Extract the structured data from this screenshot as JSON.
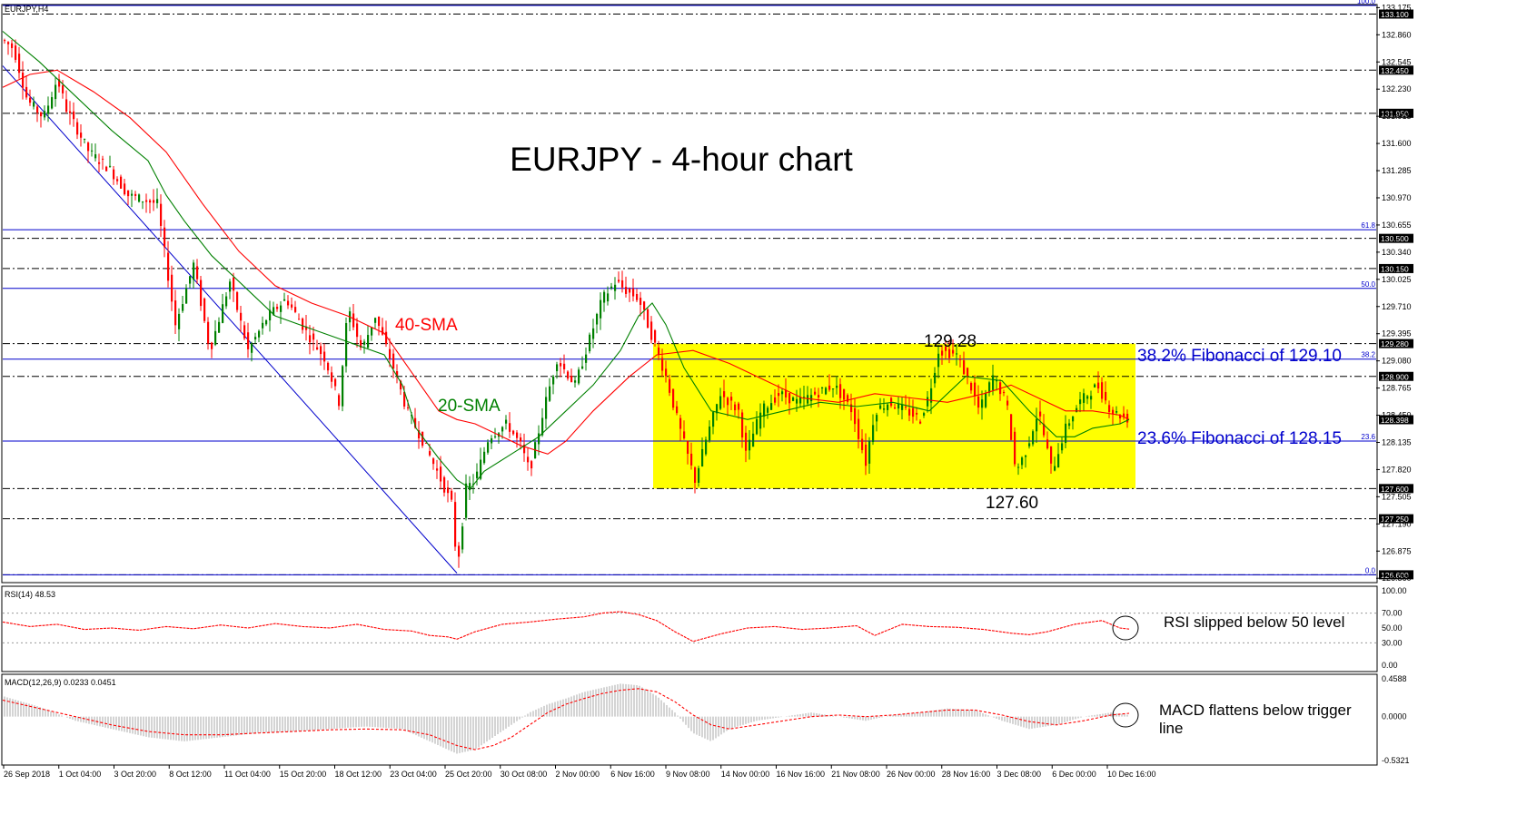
{
  "chart_data": {
    "type": "line",
    "symbol_label": "EURJPY,H4",
    "title": "EURJPY - 4-hour chart",
    "main_panel": {
      "ylim": [
        126.52,
        133.2
      ],
      "price_ticks": [
        "133.175",
        "132.860",
        "132.545",
        "132.230",
        "131.915",
        "131.600",
        "131.285",
        "130.970",
        "130.655",
        "130.340",
        "130.025",
        "129.710",
        "129.395",
        "129.080",
        "128.765",
        "128.450",
        "128.135",
        "127.820",
        "127.505",
        "127.190",
        "126.875",
        "126.560"
      ],
      "key_levels": [
        {
          "label": "133.100",
          "value": 133.1
        },
        {
          "label": "132.450",
          "value": 132.45
        },
        {
          "label": "131.950",
          "value": 131.95
        },
        {
          "label": "130.500",
          "value": 130.5
        },
        {
          "label": "130.150",
          "value": 130.15
        },
        {
          "label": "129.280",
          "value": 129.28
        },
        {
          "label": "128.900",
          "value": 128.9
        },
        {
          "label": "127.600",
          "value": 127.6
        },
        {
          "label": "127.250",
          "value": 127.25
        },
        {
          "label": "126.600",
          "value": 126.6
        }
      ],
      "current_price": {
        "label": "128.398",
        "value": 128.398
      },
      "fibonacci": [
        {
          "label": "100.0",
          "value": 133.2
        },
        {
          "label": "61.8",
          "value": 130.6
        },
        {
          "label": "50.0",
          "value": 129.92
        },
        {
          "label": "38.2",
          "value": 129.1
        },
        {
          "label": "23.6",
          "value": 128.15
        },
        {
          "label": "0.0",
          "value": 126.6
        }
      ],
      "price_path": {
        "x": [
          0,
          12,
          27,
          45,
          60,
          70,
          95,
          118,
          138,
          170,
          190,
          210,
          228,
          250,
          270,
          292,
          312,
          335,
          355,
          370,
          380,
          395,
          410,
          430,
          445,
          460,
          478,
          495,
          500,
          510,
          520,
          535,
          555,
          570,
          580,
          595,
          610,
          630,
          645,
          660,
          675,
          685,
          700,
          710,
          720,
          730,
          745,
          762,
          775,
          790,
          810,
          818,
          835,
          855,
          875,
          895,
          915,
          935,
          950,
          960,
          975,
          995,
          1010,
          1020,
          1030,
          1050,
          1065,
          1075,
          1090,
          1105,
          1115,
          1125,
          1140,
          1155,
          1170,
          1185,
          1205,
          1220,
          1230,
          1240
        ],
        "y": [
          132.8,
          132.7,
          132.1,
          131.9,
          132.35,
          132.0,
          131.5,
          131.3,
          131.0,
          130.9,
          129.5,
          130.2,
          129.2,
          130.0,
          129.2,
          129.6,
          129.8,
          129.4,
          129.1,
          128.6,
          129.7,
          129.2,
          129.6,
          129.0,
          128.5,
          128.2,
          127.8,
          127.4,
          126.65,
          127.6,
          127.7,
          128.2,
          128.35,
          128.1,
          127.8,
          128.5,
          129.1,
          128.8,
          129.3,
          129.8,
          130.0,
          129.9,
          129.8,
          129.5,
          129.2,
          128.9,
          128.3,
          127.7,
          128.2,
          128.7,
          128.5,
          128.0,
          128.5,
          128.7,
          128.6,
          128.7,
          128.8,
          128.5,
          127.9,
          128.5,
          128.6,
          128.5,
          128.4,
          128.7,
          129.2,
          129.15,
          128.8,
          128.5,
          128.9,
          128.6,
          127.8,
          128.0,
          128.5,
          127.8,
          128.3,
          128.6,
          128.8,
          128.5,
          128.45,
          128.4
        ]
      },
      "sma_20": {
        "label": "20-SMA",
        "color": "#008000",
        "x": [
          0,
          40,
          80,
          120,
          160,
          180,
          200,
          230,
          270,
          300,
          340,
          380,
          420,
          440,
          455,
          480,
          500,
          515,
          530,
          560,
          590,
          620,
          650,
          680,
          700,
          715,
          730,
          750,
          780,
          820,
          860,
          900,
          940,
          980,
          1020,
          1060,
          1100,
          1130,
          1160,
          1180,
          1200,
          1230,
          1240
        ],
        "y": [
          132.9,
          132.55,
          132.15,
          131.75,
          131.4,
          131.0,
          130.7,
          130.3,
          129.9,
          129.6,
          129.45,
          129.3,
          129.15,
          128.8,
          128.3,
          127.95,
          127.7,
          127.6,
          127.8,
          128.0,
          128.2,
          128.5,
          128.8,
          129.2,
          129.6,
          129.75,
          129.5,
          129.0,
          128.5,
          128.4,
          128.5,
          128.6,
          128.55,
          128.6,
          128.5,
          128.9,
          128.85,
          128.5,
          128.2,
          128.2,
          128.3,
          128.35,
          128.4
        ]
      },
      "sma_40": {
        "label": "40-SMA",
        "color": "#ff0000",
        "x": [
          0,
          30,
          60,
          100,
          140,
          180,
          220,
          260,
          300,
          340,
          380,
          420,
          460,
          480,
          500,
          520,
          540,
          570,
          600,
          620,
          650,
          690,
          720,
          760,
          800,
          840,
          880,
          920,
          960,
          1000,
          1040,
          1080,
          1110,
          1140,
          1170,
          1200,
          1230,
          1240
        ],
        "y": [
          132.25,
          132.4,
          132.45,
          132.2,
          131.9,
          131.5,
          130.9,
          130.35,
          129.95,
          129.75,
          129.6,
          129.4,
          128.8,
          128.5,
          128.4,
          128.35,
          128.25,
          128.1,
          128.0,
          128.15,
          128.5,
          128.9,
          129.15,
          129.2,
          129.05,
          128.85,
          128.65,
          128.6,
          128.7,
          128.65,
          128.6,
          128.7,
          128.8,
          128.65,
          128.5,
          128.5,
          128.45,
          128.4
        ]
      },
      "trendline": {
        "x": [
          0,
          500
        ],
        "y": [
          132.5,
          126.62
        ]
      },
      "range_box": {
        "x_from": 716,
        "x_to": 1247,
        "y_low": 127.6,
        "y_high": 129.28
      }
    },
    "rsi_panel": {
      "label": "RSI(14) 48.53",
      "ylim": [
        0,
        100
      ],
      "ticks": [
        "100.00",
        "70.00",
        "50.00",
        "30.00",
        "0.00"
      ],
      "levels": [
        70,
        30
      ],
      "x": [
        0,
        30,
        60,
        90,
        120,
        150,
        180,
        210,
        240,
        270,
        300,
        330,
        360,
        390,
        420,
        450,
        470,
        490,
        500,
        520,
        550,
        580,
        610,
        640,
        660,
        680,
        700,
        720,
        740,
        760,
        790,
        820,
        850,
        880,
        910,
        940,
        960,
        990,
        1020,
        1050,
        1080,
        1110,
        1130,
        1150,
        1180,
        1210,
        1230,
        1240
      ],
      "values": [
        58,
        52,
        55,
        48,
        50,
        47,
        52,
        49,
        54,
        50,
        56,
        52,
        50,
        55,
        48,
        46,
        40,
        38,
        35,
        45,
        55,
        58,
        62,
        65,
        70,
        72,
        68,
        60,
        45,
        32,
        42,
        50,
        52,
        48,
        50,
        53,
        40,
        55,
        52,
        51,
        48,
        43,
        41,
        45,
        55,
        60,
        50,
        48.53
      ]
    },
    "macd_panel": {
      "label": "MACD(12,26,9) 0.0233 0.0451",
      "ylim": [
        -0.5321,
        0.4588
      ],
      "ticks": [
        "0.4588",
        "0.0000",
        "-0.5321"
      ],
      "x": [
        0,
        40,
        80,
        120,
        160,
        200,
        240,
        280,
        320,
        360,
        400,
        440,
        470,
        500,
        520,
        540,
        560,
        580,
        600,
        620,
        640,
        660,
        680,
        700,
        720,
        740,
        760,
        780,
        800,
        830,
        860,
        890,
        920,
        950,
        980,
        1010,
        1040,
        1070,
        1100,
        1130,
        1160,
        1190,
        1220,
        1240
      ],
      "histogram": [
        0.25,
        0.12,
        -0.05,
        -0.15,
        -0.25,
        -0.3,
        -0.25,
        -0.2,
        -0.18,
        -0.15,
        -0.12,
        -0.15,
        -0.3,
        -0.45,
        -0.4,
        -0.25,
        -0.1,
        0.05,
        0.15,
        0.22,
        0.3,
        0.35,
        0.4,
        0.38,
        0.25,
        0.05,
        -0.2,
        -0.3,
        -0.15,
        -0.05,
        0.0,
        0.05,
        0.0,
        -0.05,
        0.02,
        0.05,
        0.1,
        0.08,
        -0.05,
        -0.15,
        -0.1,
        0.0,
        0.05,
        0.02
      ],
      "signal": [
        0.2,
        0.1,
        0.0,
        -0.1,
        -0.18,
        -0.22,
        -0.22,
        -0.2,
        -0.18,
        -0.16,
        -0.15,
        -0.16,
        -0.22,
        -0.35,
        -0.4,
        -0.35,
        -0.25,
        -0.1,
        0.05,
        0.15,
        0.22,
        0.28,
        0.32,
        0.34,
        0.3,
        0.18,
        0.02,
        -0.1,
        -0.15,
        -0.1,
        -0.05,
        0.0,
        0.02,
        0.0,
        0.02,
        0.05,
        0.08,
        0.08,
        0.02,
        -0.06,
        -0.1,
        -0.05,
        0.02,
        0.04
      ]
    },
    "date_labels": [
      "26 Sep 2018",
      "1 Oct 04:00",
      "3 Oct 20:00",
      "8 Oct 12:00",
      "11 Oct 04:00",
      "15 Oct 20:00",
      "18 Oct 12:00",
      "23 Oct 04:00",
      "25 Oct 20:00",
      "30 Oct 08:00",
      "2 Nov 00:00",
      "6 Nov 16:00",
      "9 Nov 08:00",
      "14 Nov 00:00",
      "16 Nov 16:00",
      "21 Nov 08:00",
      "26 Nov 00:00",
      "28 Nov 16:00",
      "3 Dec 08:00",
      "6 Dec 00:00",
      "10 Dec 16:00"
    ],
    "annotations": {
      "sma40": "40-SMA",
      "sma20": "20-SMA",
      "high": "129.28",
      "low": "127.60",
      "fib382": "38.2% Fibonacci of 129.10",
      "fib236": "23.6% Fibonacci of 128.15",
      "rsi_note": "RSI slipped below 50 level",
      "macd_note_line1": "MACD flattens below trigger",
      "macd_note_line2": "line"
    },
    "colors": {
      "sma20": "#008000",
      "sma40": "#ff0000",
      "fib": "#0000cc",
      "range_box": "#ffff00",
      "rsi": "#ff0000",
      "macd_signal": "#ff0000",
      "macd_hist": "#aaaaaa",
      "key_level_tag": "#000000"
    }
  }
}
